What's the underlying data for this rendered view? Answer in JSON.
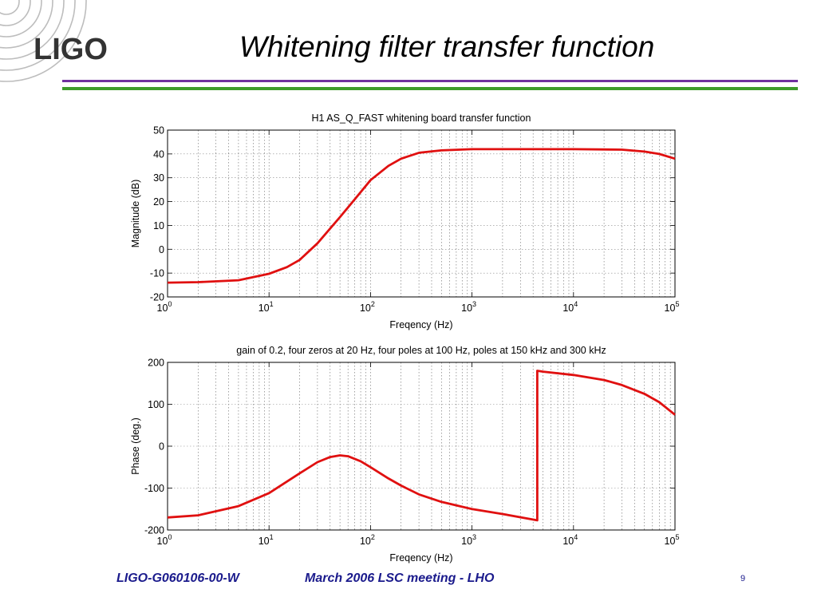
{
  "slide": {
    "logo": "LIGO",
    "title": "Whitening filter transfer function"
  },
  "footer": {
    "doc_id": "LIGO-G060106-00-W",
    "meeting": "March 2006 LSC meeting - LHO",
    "page": "9"
  },
  "colors": {
    "curve": "#e01010",
    "purple_rule": "#7030a0",
    "green_rule": "#3e9a2b",
    "footer_text": "#1a1a8c"
  },
  "chart_data": [
    {
      "type": "line",
      "title": "H1 AS_Q_FAST whitening board transfer function",
      "xlabel": "Freqency (Hz)",
      "ylabel": "Magnitude (dB)",
      "xscale": "log",
      "xlim": [
        1,
        100000
      ],
      "ylim": [
        -20,
        50
      ],
      "xticks": [
        {
          "base": "10",
          "exp": "0"
        },
        {
          "base": "10",
          "exp": "1"
        },
        {
          "base": "10",
          "exp": "2"
        },
        {
          "base": "10",
          "exp": "3"
        },
        {
          "base": "10",
          "exp": "4"
        },
        {
          "base": "10",
          "exp": "5"
        }
      ],
      "yticks": [
        "50",
        "40",
        "30",
        "20",
        "10",
        "0",
        "-10",
        "-20"
      ],
      "grid": true,
      "series": [
        {
          "x": [
            1,
            2,
            5,
            10,
            15,
            20,
            30,
            50,
            70,
            100,
            150,
            200,
            300,
            500,
            1000,
            2000,
            5000,
            10000,
            30000,
            50000,
            70000,
            100000
          ],
          "y": [
            -14,
            -13.8,
            -13,
            -10.3,
            -7.5,
            -4.5,
            2.5,
            13.5,
            21,
            29,
            35,
            38,
            40.5,
            41.5,
            42,
            42,
            42,
            42,
            41.8,
            41,
            40,
            38
          ]
        }
      ]
    },
    {
      "type": "line",
      "title": "gain of 0.2, four zeros at 20 Hz, four poles at 100 Hz, poles at 150 kHz and 300 kHz",
      "xlabel": "Freqency (Hz)",
      "ylabel": "Phase (deg.)",
      "xscale": "log",
      "xlim": [
        1,
        100000
      ],
      "ylim": [
        -200,
        200
      ],
      "xticks": [
        {
          "base": "10",
          "exp": "0"
        },
        {
          "base": "10",
          "exp": "1"
        },
        {
          "base": "10",
          "exp": "2"
        },
        {
          "base": "10",
          "exp": "3"
        },
        {
          "base": "10",
          "exp": "4"
        },
        {
          "base": "10",
          "exp": "5"
        }
      ],
      "yticks": [
        "200",
        "100",
        "0",
        "-100",
        "-200"
      ],
      "grid": true,
      "series": [
        {
          "x": [
            1,
            2,
            5,
            10,
            20,
            30,
            40,
            50,
            60,
            80,
            100,
            150,
            200,
            300,
            500,
            1000,
            2000,
            4400,
            4400,
            5000,
            10000,
            20000,
            30000,
            50000,
            70000,
            100000
          ],
          "y": [
            -170,
            -165,
            -143,
            -112,
            -65,
            -38,
            -26,
            -22,
            -24,
            -36,
            -50,
            -77,
            -94,
            -115,
            -133,
            -150,
            -162,
            -177,
            180,
            178,
            170,
            158,
            146,
            125,
            105,
            75
          ]
        }
      ]
    }
  ]
}
